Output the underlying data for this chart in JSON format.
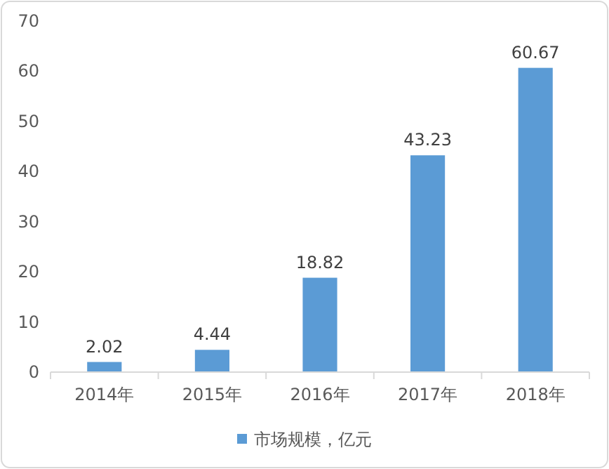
{
  "chart_data": {
    "type": "bar",
    "categories": [
      "2014年",
      "2015年",
      "2016年",
      "2017年",
      "2018年"
    ],
    "series": [
      {
        "name": "市场规模，亿元",
        "color": "#5b9bd5",
        "values": [
          2.02,
          4.44,
          18.82,
          43.23,
          60.67
        ]
      }
    ],
    "ylim": [
      0,
      70
    ],
    "yticks": [
      0,
      10,
      20,
      30,
      40,
      50,
      60,
      70
    ],
    "data_labels": true,
    "legend": "bottom"
  }
}
